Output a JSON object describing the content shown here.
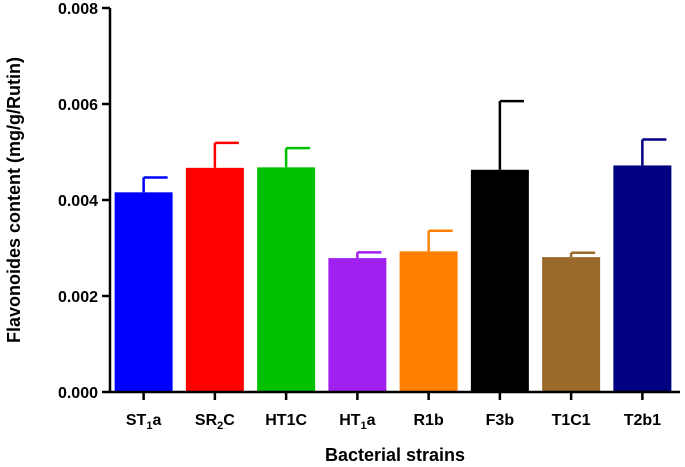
{
  "chart_data": {
    "type": "bar",
    "title": "",
    "xlabel": "Bacterial strains",
    "ylabel": "Flavonoides content (mg/g/Rutin)",
    "ylim": [
      0,
      0.008
    ],
    "yticks": [
      "0.000",
      "0.002",
      "0.004",
      "0.006",
      "0.008"
    ],
    "grid": false,
    "legend": "none",
    "categories": [
      {
        "label": "ST",
        "sub": "1",
        "suffix": "a"
      },
      {
        "label": "SR",
        "sub": "2",
        "suffix": "C"
      },
      {
        "label": "HT1C",
        "sub": "",
        "suffix": ""
      },
      {
        "label": "HT",
        "sub": "1",
        "suffix": "a"
      },
      {
        "label": "R1b",
        "sub": "",
        "suffix": ""
      },
      {
        "label": "F3b",
        "sub": "",
        "suffix": ""
      },
      {
        "label": "T1C1",
        "sub": "",
        "suffix": ""
      },
      {
        "label": "T2b1",
        "sub": "",
        "suffix": ""
      }
    ],
    "values": [
      0.00416,
      0.00467,
      0.00468,
      0.00279,
      0.00293,
      0.00463,
      0.00281,
      0.00472
    ],
    "errors": [
      0.00031,
      0.00052,
      0.0004,
      0.00012,
      0.00043,
      0.00143,
      9e-05,
      0.00054
    ],
    "colors": [
      "#0000ff",
      "#ff0000",
      "#00c000",
      "#a020f0",
      "#ff8000",
      "#000000",
      "#9b6a2a",
      "#000080"
    ]
  }
}
